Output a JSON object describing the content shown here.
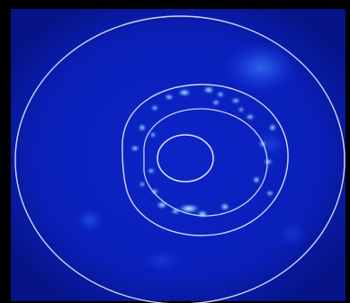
{
  "image": {
    "kind": "false-color circular scan heatmap",
    "colors": {
      "frame": "#000000",
      "field": "#0a1fb8",
      "field_dark": "#061487",
      "contour": "#e8ecff",
      "hotspot": "#8fd8ff",
      "hotspot_core": "#e6f8ff"
    },
    "contours": [
      "outer-boundary",
      "middle-ring",
      "inner-ring",
      "core-ring"
    ]
  }
}
